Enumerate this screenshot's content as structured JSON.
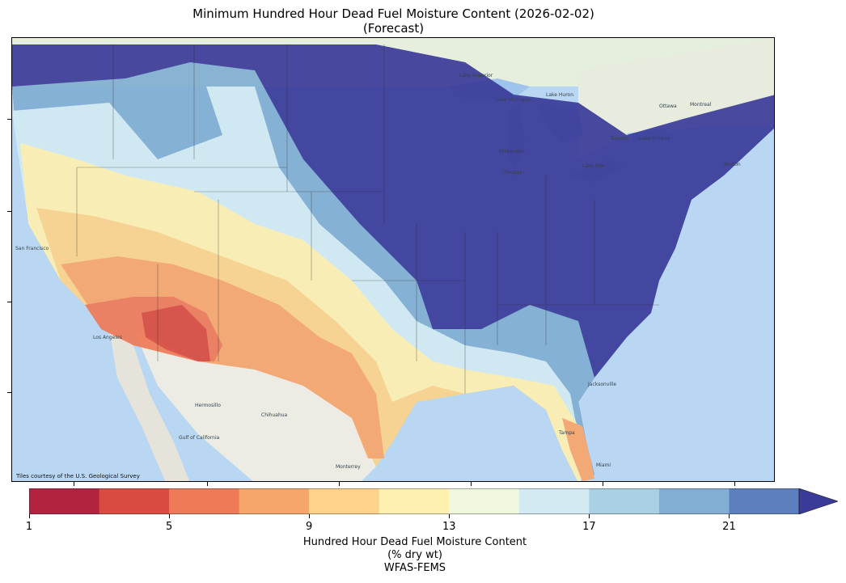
{
  "title": {
    "line1": "Minimum Hundred Hour Dead Fuel Moisture Content (2026-02-02)",
    "line2": "(Forecast)"
  },
  "map": {
    "credit": "Tiles courtesy of the U.S. Geological Survey",
    "basemap_labels": [
      "Lake Superior",
      "Lake Huron",
      "Lake Ontario",
      "Lake Erie",
      "Lake Michigan",
      "Milwaukee",
      "Chicago",
      "Ottawa",
      "Montreal",
      "Toronto",
      "Boston",
      "Jacksonville",
      "Tampa",
      "Miami",
      "Hermosillo",
      "Chihuahua",
      "Monterrey",
      "Gulf of California",
      "San Francisco",
      "Los Angeles"
    ],
    "colors": {
      "water": "#b9d7f3",
      "land": "#ecece4",
      "canada": "#e6eedd"
    }
  },
  "colorbar": {
    "colors": [
      "#b2233f",
      "#d94b40",
      "#ef7a58",
      "#f7a66b",
      "#fdd38b",
      "#fef1b0",
      "#f1f8e0",
      "#d3eaf2",
      "#a9d0e3",
      "#81aed2",
      "#5d7fbd",
      "#3a3b99"
    ],
    "ticks": [
      "1",
      "5",
      "9",
      "13",
      "17",
      "21"
    ],
    "label_line1": "Hundred Hour Dead Fuel Moisture Content",
    "label_line2": "(% dry wt)",
    "label_line3": "WFAS-FEMS"
  }
}
